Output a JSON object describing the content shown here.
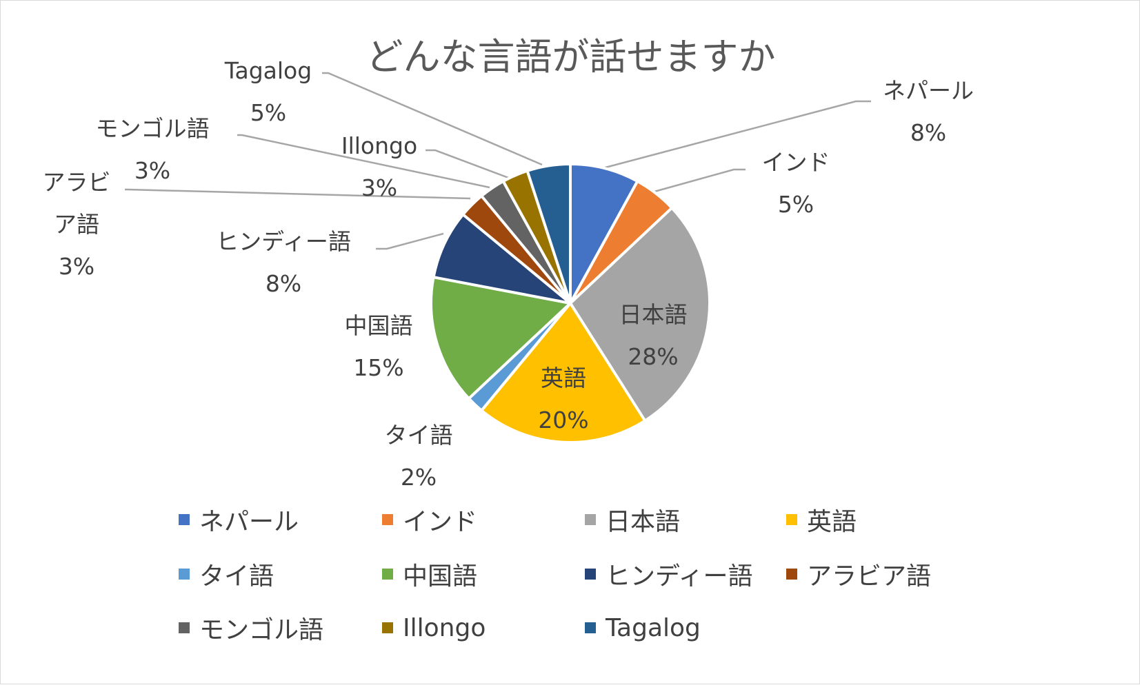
{
  "chart_data": {
    "type": "pie",
    "title": "どんな言語が話せますか",
    "categories": [
      "ネパール",
      "インド",
      "日本語",
      "英語",
      "タイ語",
      "中国語",
      "ヒンディー語",
      "アラビア語",
      "モンゴル語",
      "Illongo",
      "Tagalog"
    ],
    "values": [
      8,
      5,
      28,
      20,
      2,
      15,
      8,
      3,
      3,
      3,
      5
    ],
    "value_labels": [
      "8%",
      "5%",
      "28%",
      "20%",
      "2%",
      "15%",
      "8%",
      "3%",
      "3%",
      "3%",
      "5%"
    ],
    "slice_labels": [
      "ネパール",
      "インド",
      "日本語",
      "英語",
      "タイ語",
      "中国語",
      "ヒンディー語",
      "アラビ\nア語",
      "モンゴル語",
      "Illongo",
      "Tagalog"
    ],
    "colors": [
      "#4472C4",
      "#ED7D31",
      "#A5A5A5",
      "#FFC000",
      "#5B9BD5",
      "#70AD47",
      "#264478",
      "#9E480E",
      "#636363",
      "#997300",
      "#255E91"
    ],
    "legend_position": "bottom",
    "start_angle_deg": 0,
    "direction": "clockwise"
  }
}
